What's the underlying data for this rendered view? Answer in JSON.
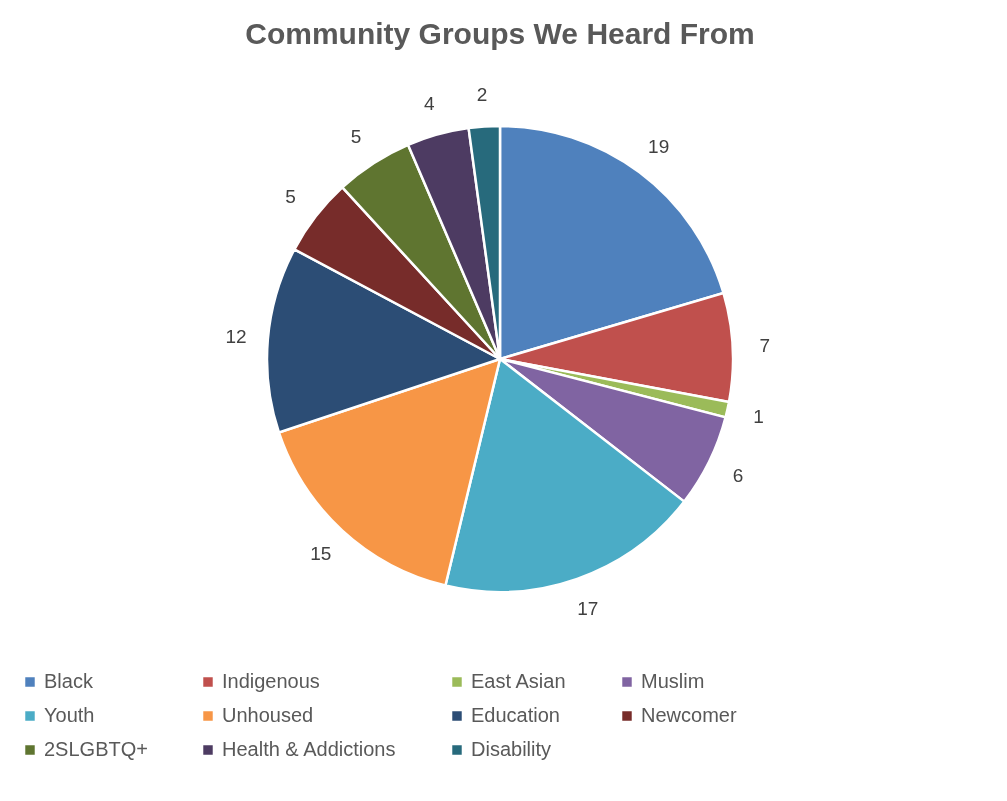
{
  "chart_data": {
    "type": "pie",
    "title": "Community Groups We Heard From",
    "categories": [
      "Black",
      "Indigenous",
      "East Asian",
      "Muslim",
      "Youth",
      "Unhoused",
      "Education",
      "Newcomer",
      "2SLGBTQ+",
      "Health & Addictions",
      "Disability"
    ],
    "values": [
      19,
      7,
      1,
      6,
      17,
      15,
      12,
      5,
      5,
      4,
      2
    ],
    "colors": [
      "#4f81bd",
      "#c0504d",
      "#9bbb59",
      "#8064a2",
      "#4bacc6",
      "#f79646",
      "#2c4d75",
      "#772c2a",
      "#5f7530",
      "#4d3b62",
      "#276a7c"
    ],
    "data_labels": true,
    "legend": "bottom"
  }
}
